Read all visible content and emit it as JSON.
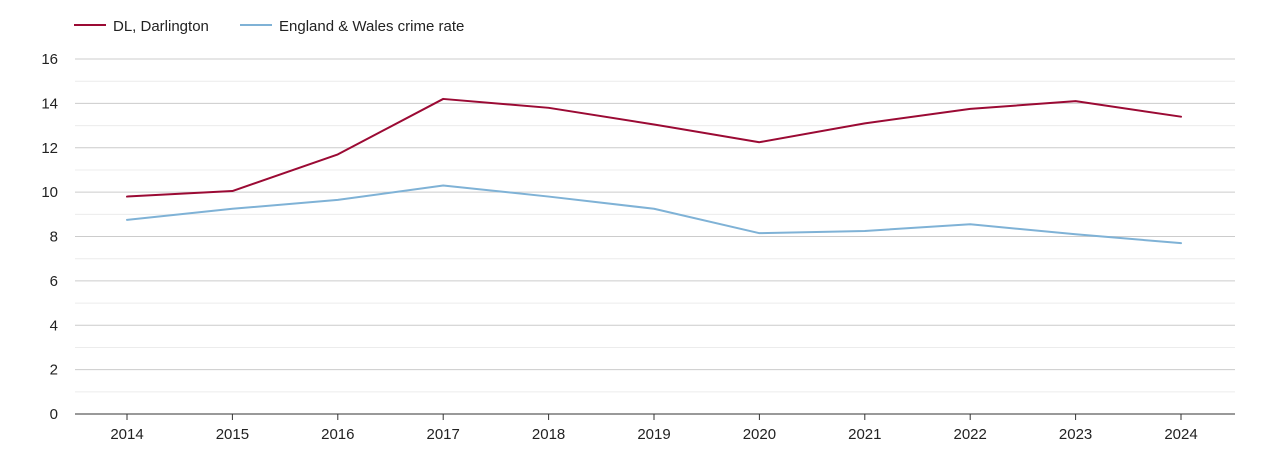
{
  "chart_data": {
    "type": "line",
    "title": "",
    "xlabel": "",
    "ylabel": "",
    "categories": [
      "2014",
      "2015",
      "2016",
      "2017",
      "2018",
      "2019",
      "2020",
      "2021",
      "2022",
      "2023",
      "2024"
    ],
    "ylim": [
      0,
      16
    ],
    "yticks": [
      0,
      2,
      4,
      6,
      8,
      10,
      12,
      14,
      16
    ],
    "grid": true,
    "legend_position": "top-left",
    "series": [
      {
        "name": "DL, Darlington",
        "color": "#9b0a34",
        "values": [
          9.8,
          10.05,
          11.7,
          14.2,
          13.8,
          13.05,
          12.25,
          13.1,
          13.75,
          14.1,
          13.4
        ]
      },
      {
        "name": "England & Wales crime rate",
        "color": "#7fb2d6",
        "values": [
          8.75,
          9.25,
          9.65,
          10.3,
          9.8,
          9.25,
          8.15,
          8.25,
          8.55,
          8.1,
          7.7
        ]
      }
    ]
  }
}
